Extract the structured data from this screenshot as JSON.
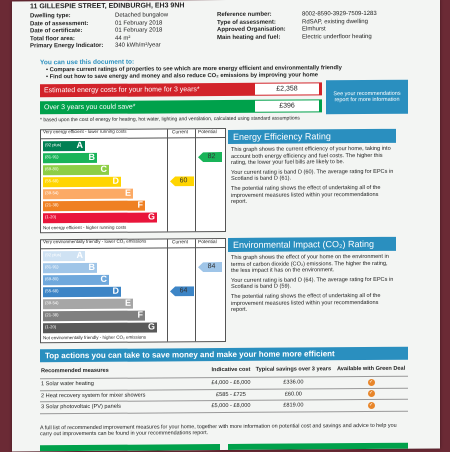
{
  "address": "11 GILLESPIE STREET, EDINBURGH, EH3 9NH",
  "meta_left": [
    {
      "k": "Dwelling type:",
      "v": "Detached bungalow"
    },
    {
      "k": "Date of assessment:",
      "v": "01 February 2018"
    },
    {
      "k": "Date of certificate:",
      "v": "01 February 2018"
    },
    {
      "k": "Total floor area:",
      "v": "44 m²"
    },
    {
      "k": "Primary Energy Indicator:",
      "v": "340 kWh/m²/year"
    }
  ],
  "meta_right": [
    {
      "k": "Reference number:",
      "v": "8002-8590-3929-7509-1283"
    },
    {
      "k": "Type of assessment:",
      "v": "RdSAP, existing dwelling"
    },
    {
      "k": "Approved Organisation:",
      "v": "Elmhurst"
    },
    {
      "k": "Main heating and fuel:",
      "v": "Electric underfloor heating"
    }
  ],
  "use_heading": "You can use this document to:",
  "bullets": [
    "Compare current ratings of properties to see which are more energy efficient and environmentally friendly",
    "Find out how to save energy and money and also reduce CO₂ emissions by improving your home"
  ],
  "cost_estimate_label": "Estimated energy costs for your home for 3 years*",
  "cost_estimate_value": "£2,358",
  "savings_label": "Over 3 years you could save*",
  "savings_value": "£396",
  "recommendations_box": "See your recommendations report for more information",
  "based_note": "* based upon the cost of energy for heating, hot water, lighting and ventilation, calculated using standard assumptions",
  "ee_chart": {
    "top_label": "Very energy efficient - lower running costs",
    "bottom_label": "Not energy efficient - higher running costs",
    "col_current": "Current",
    "col_potential": "Potential",
    "bands": [
      {
        "range": "(92 plus)",
        "letter": "A",
        "color": "#008054"
      },
      {
        "range": "(81-91)",
        "letter": "B",
        "color": "#19b459"
      },
      {
        "range": "(69-80)",
        "letter": "C",
        "color": "#8dce46"
      },
      {
        "range": "(55-68)",
        "letter": "D",
        "color": "#ffd500"
      },
      {
        "range": "(39-54)",
        "letter": "E",
        "color": "#fcaa65"
      },
      {
        "range": "(21-38)",
        "letter": "F",
        "color": "#ef8023"
      },
      {
        "range": "(1-20)",
        "letter": "G",
        "color": "#e9153b"
      }
    ],
    "current": 60,
    "current_band": 3,
    "current_color": "#ffd500",
    "potential": 82,
    "potential_band": 1,
    "potential_color": "#19b459"
  },
  "ei_chart": {
    "top_label": "Very environmentally friendly - lower CO₂ emissions",
    "bottom_label": "Not environmentally friendly - higher CO₂ emissions",
    "col_current": "Current",
    "col_potential": "Potential",
    "bands": [
      {
        "range": "(92 plus)",
        "letter": "A",
        "color": "#cfe2f3"
      },
      {
        "range": "(81-91)",
        "letter": "B",
        "color": "#9fc5e8"
      },
      {
        "range": "(69-80)",
        "letter": "C",
        "color": "#6fa8dc"
      },
      {
        "range": "(55-68)",
        "letter": "D",
        "color": "#3d85c6"
      },
      {
        "range": "(39-54)",
        "letter": "E",
        "color": "#a6a6a6"
      },
      {
        "range": "(21-38)",
        "letter": "F",
        "color": "#808080"
      },
      {
        "range": "(1-20)",
        "letter": "G",
        "color": "#595959"
      }
    ],
    "current": 64,
    "current_band": 3,
    "current_color": "#3d85c6",
    "potential": 84,
    "potential_band": 1,
    "potential_color": "#9fc5e8"
  },
  "ee_section": {
    "title": "Energy Efficiency Rating",
    "p1": "This graph shows the current efficiency of your home, taking into account both energy efficiency and fuel costs. The higher this rating, the lower your fuel bills are likely to be.",
    "p2": "Your current rating is band D (60). The average rating for EPCs in Scotland is band D (61).",
    "p3": "The potential rating shows the effect of undertaking all of the improvement measures listed within your recommendations report."
  },
  "ei_section": {
    "title": "Environmental Impact (CO₂) Rating",
    "p1": "This graph shows the effect of your home on the environment in terms of carbon dioxide (CO₂) emissions. The higher the rating, the less impact it has on the environment.",
    "p2": "Your current rating is band D (64). The average rating for EPCs in Scotland is band D (59).",
    "p3": "The potential rating shows the effect of undertaking all of the improvement measures listed within your recommendations report."
  },
  "actions_title": "Top actions you can take to save money and make your home more efficient",
  "table": {
    "headers": [
      "Recommended measures",
      "Indicative cost",
      "Typical savings over 3 years",
      "Available with Green Deal"
    ],
    "rows": [
      {
        "measure": "1 Solar water heating",
        "cost": "£4,000 - £6,000",
        "saving": "£336.00"
      },
      {
        "measure": "2 Heat recovery system for mixer showers",
        "cost": "£585 - £725",
        "saving": "£60.00"
      },
      {
        "measure": "3 Solar photovoltaic (PV) panels",
        "cost": "£5,000 - £8,000",
        "saving": "£819.00"
      }
    ],
    "tick_icon": "checkmark-icon"
  },
  "footer_text": "A full list of recommended improvement measures for your home, together with more information on potential cost and savings and advice to help you carry out improvements can be found in your recommendations report."
}
